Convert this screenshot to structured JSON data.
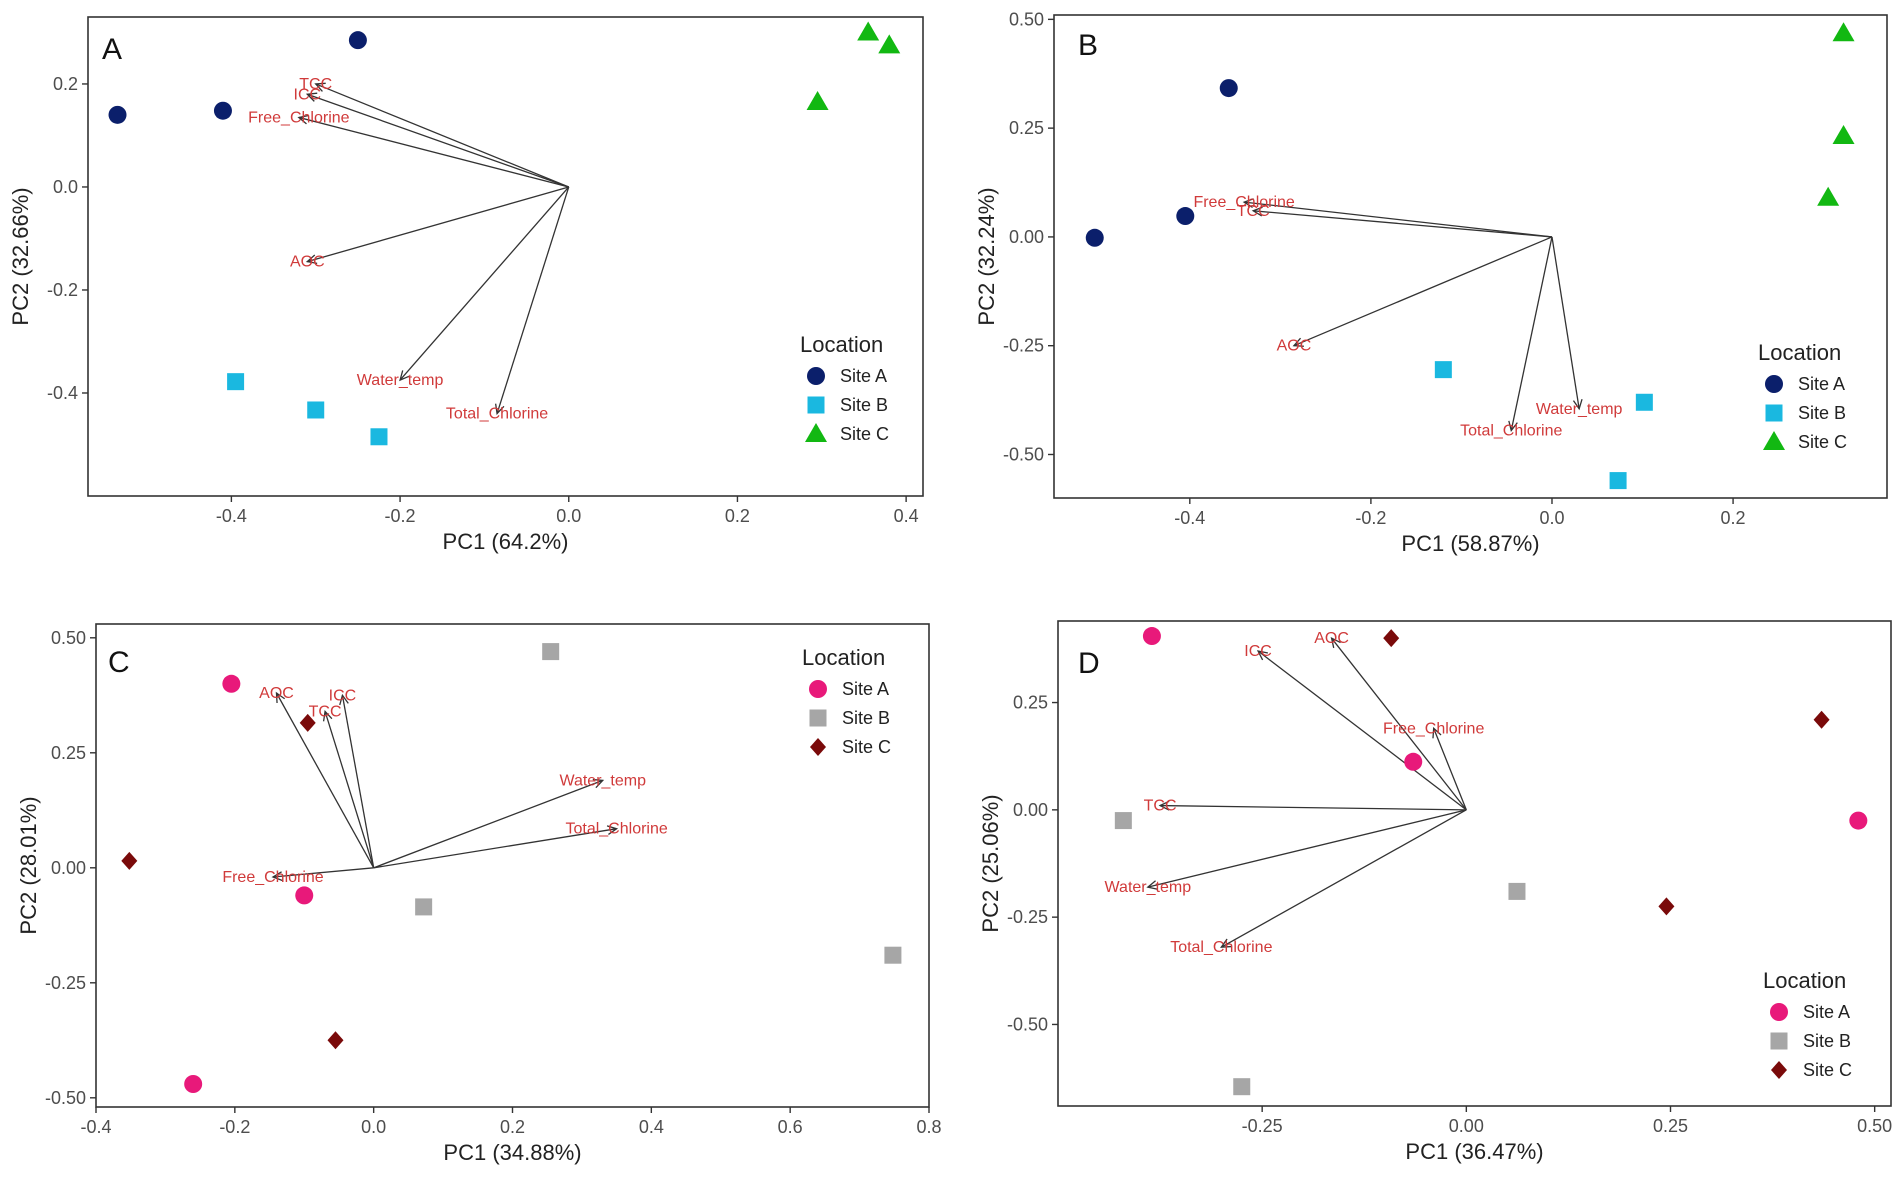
{
  "chart_data": [
    {
      "type": "scatter",
      "subtype": "pca-biplot",
      "panel_label": "A",
      "xlabel": "PC1 (64.2%)",
      "ylabel": "PC2 (32.66%)",
      "xlim": [
        -0.57,
        0.42
      ],
      "ylim": [
        -0.6,
        0.33
      ],
      "xticks": [
        -0.4,
        -0.2,
        0.0,
        0.2,
        0.4
      ],
      "xtick_labels": [
        "-0.4",
        "-0.2",
        "0.0",
        "0.2",
        "0.4"
      ],
      "yticks": [
        -0.4,
        -0.2,
        0.0,
        0.2
      ],
      "ytick_labels": [
        "-0.4",
        "-0.2",
        "0.0",
        "0.2"
      ],
      "legend_title": "Location",
      "legend_position": "right",
      "series": [
        {
          "name": "Site A",
          "color": "#0b1f6b",
          "shape": "circle",
          "points": [
            [
              -0.535,
              0.14
            ],
            [
              -0.41,
              0.148
            ],
            [
              -0.25,
              0.285
            ]
          ]
        },
        {
          "name": "Site B",
          "color": "#1ab8e0",
          "shape": "square",
          "points": [
            [
              -0.395,
              -0.378
            ],
            [
              -0.3,
              -0.433
            ],
            [
              -0.225,
              -0.485
            ]
          ]
        },
        {
          "name": "Site C",
          "color": "#12b812",
          "shape": "triangle",
          "points": [
            [
              0.295,
              0.165
            ],
            [
              0.355,
              0.3
            ],
            [
              0.38,
              0.275
            ]
          ]
        }
      ],
      "loadings": [
        {
          "label": "TCC",
          "x": -0.3,
          "y": 0.2
        },
        {
          "label": "ICC",
          "x": -0.31,
          "y": 0.18
        },
        {
          "label": "Free_Chlorine",
          "x": -0.32,
          "y": 0.135
        },
        {
          "label": "AOC",
          "x": -0.31,
          "y": -0.145
        },
        {
          "label": "Water_temp",
          "x": -0.2,
          "y": -0.375
        },
        {
          "label": "Total_Chlorine",
          "x": -0.085,
          "y": -0.44
        }
      ]
    },
    {
      "type": "scatter",
      "subtype": "pca-biplot",
      "panel_label": "B",
      "xlabel": "PC1 (58.87%)",
      "ylabel": "PC2 (32.24%)",
      "xlim": [
        -0.55,
        0.37
      ],
      "ylim": [
        -0.6,
        0.51
      ],
      "xticks": [
        -0.4,
        -0.2,
        0.0,
        0.2
      ],
      "xtick_labels": [
        "-0.4",
        "-0.2",
        "0.0",
        "0.2"
      ],
      "yticks": [
        -0.5,
        -0.25,
        0.0,
        0.25,
        0.5
      ],
      "ytick_labels": [
        "-0.50",
        "-0.25",
        "0.00",
        "0.25",
        "0.50"
      ],
      "legend_title": "Location",
      "legend_position": "right",
      "series": [
        {
          "name": "Site A",
          "color": "#0b1f6b",
          "shape": "circle",
          "points": [
            [
              -0.505,
              -0.002
            ],
            [
              -0.405,
              0.048
            ],
            [
              -0.357,
              0.342
            ]
          ]
        },
        {
          "name": "Site B",
          "color": "#1ab8e0",
          "shape": "square",
          "points": [
            [
              -0.12,
              -0.305
            ],
            [
              0.073,
              -0.56
            ],
            [
              0.102,
              -0.38
            ]
          ]
        },
        {
          "name": "Site C",
          "color": "#12b812",
          "shape": "triangle",
          "points": [
            [
              0.305,
              0.09
            ],
            [
              0.322,
              0.232
            ],
            [
              0.322,
              0.468
            ]
          ]
        }
      ],
      "loadings": [
        {
          "label": "Free_Chlorine",
          "x": -0.34,
          "y": 0.08
        },
        {
          "label": "TCC",
          "x": -0.33,
          "y": 0.06
        },
        {
          "label": "AOC",
          "x": -0.285,
          "y": -0.25
        },
        {
          "label": "Water_temp",
          "x": 0.03,
          "y": -0.395
        },
        {
          "label": "Total_Chlorine",
          "x": -0.045,
          "y": -0.445
        }
      ]
    },
    {
      "type": "scatter",
      "subtype": "pca-biplot",
      "panel_label": "C",
      "xlabel": "PC1 (34.88%)",
      "ylabel": "PC2 (28.01%)",
      "xlim": [
        -0.4,
        0.8
      ],
      "ylim": [
        -0.52,
        0.53
      ],
      "xticks": [
        -0.4,
        -0.2,
        0.0,
        0.2,
        0.4,
        0.6,
        0.8
      ],
      "xtick_labels": [
        "-0.4",
        "-0.2",
        "0.0",
        "0.2",
        "0.4",
        "0.6",
        "0.8"
      ],
      "yticks": [
        -0.5,
        -0.25,
        0.0,
        0.25,
        0.5
      ],
      "ytick_labels": [
        "-0.50",
        "-0.25",
        "0.00",
        "0.25",
        "0.50"
      ],
      "legend_title": "Location",
      "legend_position": "top-right",
      "series": [
        {
          "name": "Site A",
          "color": "#e8197a",
          "shape": "circle",
          "points": [
            [
              -0.26,
              -0.47
            ],
            [
              -0.205,
              0.4
            ],
            [
              -0.1,
              -0.06
            ]
          ]
        },
        {
          "name": "Site B",
          "color": "#a6a6a6",
          "shape": "square",
          "points": [
            [
              0.072,
              -0.085
            ],
            [
              0.255,
              0.47
            ],
            [
              0.748,
              -0.19
            ]
          ]
        },
        {
          "name": "Site C",
          "color": "#7a0a0a",
          "shape": "diamond",
          "points": [
            [
              -0.352,
              0.015
            ],
            [
              -0.095,
              0.315
            ],
            [
              -0.055,
              -0.375
            ]
          ]
        }
      ],
      "loadings": [
        {
          "label": "AOC",
          "x": -0.14,
          "y": 0.38
        },
        {
          "label": "ICC",
          "x": -0.045,
          "y": 0.375
        },
        {
          "label": "TCC",
          "x": -0.07,
          "y": 0.34
        },
        {
          "label": "Free_Chlorine",
          "x": -0.145,
          "y": -0.02
        },
        {
          "label": "Water_temp",
          "x": 0.33,
          "y": 0.19
        },
        {
          "label": "Total_Chlorine",
          "x": 0.35,
          "y": 0.085
        }
      ]
    },
    {
      "type": "scatter",
      "subtype": "pca-biplot",
      "panel_label": "D",
      "xlabel": "PC1 (36.47%)",
      "ylabel": "PC2 (25.06%)",
      "xlim": [
        -0.5,
        0.52
      ],
      "ylim": [
        -0.69,
        0.44
      ],
      "xticks": [
        -0.25,
        0.0,
        0.25,
        0.5
      ],
      "xtick_labels": [
        "-0.25",
        "0.00",
        "0.25",
        "0.50"
      ],
      "yticks": [
        -0.5,
        -0.25,
        0.0,
        0.25
      ],
      "ytick_labels": [
        "-0.50",
        "-0.25",
        "0.00",
        "0.25"
      ],
      "legend_title": "Location",
      "legend_position": "bottom-right",
      "series": [
        {
          "name": "Site A",
          "color": "#e8197a",
          "shape": "circle",
          "points": [
            [
              -0.385,
              0.405
            ],
            [
              -0.065,
              0.112
            ],
            [
              0.48,
              -0.025
            ]
          ]
        },
        {
          "name": "Site B",
          "color": "#a6a6a6",
          "shape": "square",
          "points": [
            [
              -0.42,
              -0.025
            ],
            [
              -0.275,
              -0.645
            ],
            [
              0.062,
              -0.19
            ]
          ]
        },
        {
          "name": "Site C",
          "color": "#7a0a0a",
          "shape": "diamond",
          "points": [
            [
              -0.092,
              0.4
            ],
            [
              0.245,
              -0.225
            ],
            [
              0.435,
              0.21
            ]
          ]
        }
      ],
      "loadings": [
        {
          "label": "ICC",
          "x": -0.255,
          "y": 0.37
        },
        {
          "label": "AOC",
          "x": -0.165,
          "y": 0.4
        },
        {
          "label": "Free_Chlorine",
          "x": -0.04,
          "y": 0.19
        },
        {
          "label": "TCC",
          "x": -0.375,
          "y": 0.01
        },
        {
          "label": "Water_temp",
          "x": -0.39,
          "y": -0.18
        },
        {
          "label": "Total_Chlorine",
          "x": -0.3,
          "y": -0.32
        }
      ]
    }
  ]
}
